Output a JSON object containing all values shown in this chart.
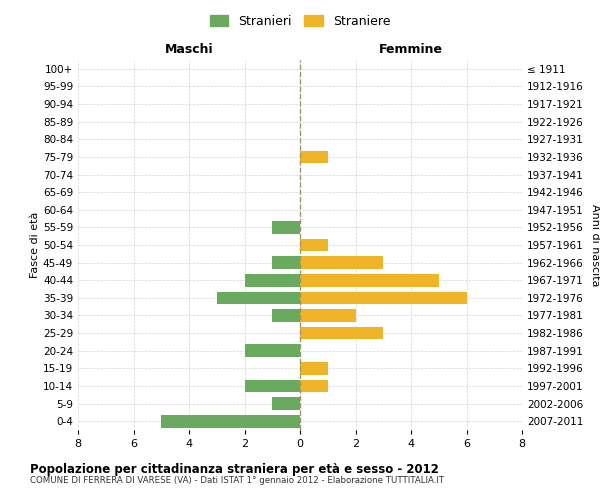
{
  "age_groups": [
    "100+",
    "95-99",
    "90-94",
    "85-89",
    "80-84",
    "75-79",
    "70-74",
    "65-69",
    "60-64",
    "55-59",
    "50-54",
    "45-49",
    "40-44",
    "35-39",
    "30-34",
    "25-29",
    "20-24",
    "15-19",
    "10-14",
    "5-9",
    "0-4"
  ],
  "birth_years": [
    "≤ 1911",
    "1912-1916",
    "1917-1921",
    "1922-1926",
    "1927-1931",
    "1932-1936",
    "1937-1941",
    "1942-1946",
    "1947-1951",
    "1952-1956",
    "1957-1961",
    "1962-1966",
    "1967-1971",
    "1972-1976",
    "1977-1981",
    "1982-1986",
    "1987-1991",
    "1992-1996",
    "1997-2001",
    "2002-2006",
    "2007-2011"
  ],
  "maschi": [
    0,
    0,
    0,
    0,
    0,
    0,
    0,
    0,
    0,
    1,
    0,
    1,
    2,
    3,
    1,
    0,
    2,
    0,
    2,
    1,
    5
  ],
  "femmine": [
    0,
    0,
    0,
    0,
    0,
    1,
    0,
    0,
    0,
    0,
    1,
    3,
    5,
    6,
    2,
    3,
    0,
    1,
    1,
    0,
    0
  ],
  "color_maschi": "#6aaa5e",
  "color_femmine": "#f0b429",
  "title": "Popolazione per cittadinanza straniera per età e sesso - 2012",
  "subtitle": "COMUNE DI FERRERA DI VARESE (VA) - Dati ISTAT 1° gennaio 2012 - Elaborazione TUTTITALIA.IT",
  "label_maschi": "Stranieri",
  "label_femmine": "Straniere",
  "xlabel_left": "Maschi",
  "xlabel_right": "Femmine",
  "ylabel_left": "Fasce di età",
  "ylabel_right": "Anni di nascita",
  "xlim": 8,
  "background_color": "#ffffff",
  "grid_color": "#d0d0d0"
}
